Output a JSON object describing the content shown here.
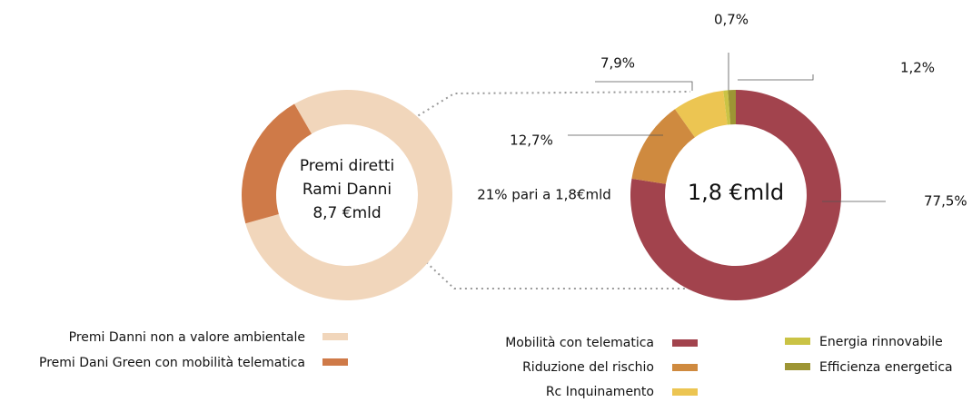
{
  "chart_data": [
    {
      "type": "pie",
      "center_label": [
        "Premi diretti",
        "Rami Danni",
        "8,7 €mld"
      ],
      "annotation": "21% pari a 1,8€mld",
      "categories": [
        "Premi Danni non a valore ambientale",
        "Premi Dani Green con mobilità telematica"
      ],
      "values": [
        79,
        21
      ],
      "colors": [
        "#f1d6bb",
        "#cf7a48"
      ]
    },
    {
      "type": "pie",
      "center_label": [
        "1,8 €mld"
      ],
      "categories": [
        "Mobilità con telematica",
        "Riduzione del rischio",
        "Rc Inquinamento",
        "Energia rinnovabile",
        "Efficienza energetica"
      ],
      "values": [
        77.5,
        12.7,
        7.9,
        0.7,
        1.2
      ],
      "value_labels": [
        "77,5%",
        "12,7%",
        "7,9%",
        "0,7%",
        "1,2%"
      ],
      "colors": [
        "#a2434d",
        "#cf8a3f",
        "#ecc552",
        "#cac345",
        "#9d9534"
      ]
    }
  ]
}
